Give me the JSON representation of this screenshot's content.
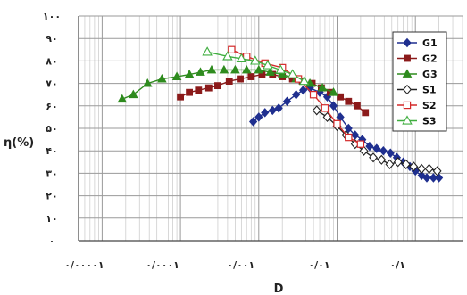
{
  "chart_data": {
    "type": "scatter",
    "xlabel": "D",
    "ylabel": "η(%)",
    "xscale": "log",
    "xlim": [
      5e-06,
      0.4
    ],
    "ylim": [
      0,
      100
    ],
    "grid": true,
    "legend_position": "top-right",
    "x_tick_labels": [
      "۰/۰۰۰۰۱",
      "۰/۰۰۰۱",
      "۰/۰۰۱",
      "۰/۰۱",
      "۰/۱"
    ],
    "x_tick_values": [
      1e-05,
      0.0001,
      0.001,
      0.01,
      0.1
    ],
    "y_tick_labels": [
      "۰",
      "۱۰",
      "۲۰",
      "۳۰",
      "۴۰",
      "۵۰",
      "۶۰",
      "۷۰",
      "۸۰",
      "۹۰",
      "۱۰۰"
    ],
    "y_tick_values": [
      0,
      10,
      20,
      30,
      40,
      50,
      60,
      70,
      80,
      90,
      100
    ],
    "series": [
      {
        "name": "G1",
        "color": "#1f2f8f",
        "marker": "diamond-filled",
        "x": [
          0.00085,
          0.001,
          0.0012,
          0.0015,
          0.0018,
          0.0023,
          0.003,
          0.0037,
          0.0045,
          0.006,
          0.0075,
          0.009,
          0.011,
          0.014,
          0.017,
          0.021,
          0.026,
          0.032,
          0.039,
          0.048,
          0.058,
          0.07,
          0.085,
          0.1,
          0.12,
          0.14,
          0.17,
          0.2
        ],
        "y": [
          53,
          55,
          57,
          58,
          59,
          62,
          65,
          67,
          68,
          66,
          64,
          60,
          55,
          50,
          47,
          45,
          42,
          41,
          40,
          39,
          37,
          35,
          33,
          31,
          29,
          28,
          28,
          28
        ]
      },
      {
        "name": "G2",
        "color": "#8b1a1a",
        "marker": "square-filled",
        "x": [
          0.0001,
          0.00013,
          0.00017,
          0.00023,
          0.0003,
          0.00042,
          0.00058,
          0.0008,
          0.0011,
          0.0015,
          0.002,
          0.0027,
          0.0036,
          0.0048,
          0.0063,
          0.0082,
          0.011,
          0.014,
          0.018,
          0.023
        ],
        "y": [
          64,
          66,
          67,
          68,
          69,
          71,
          72,
          73,
          74,
          74,
          73,
          72,
          71,
          70,
          68,
          66,
          64,
          62,
          60,
          57
        ]
      },
      {
        "name": "G3",
        "color": "#2e8b1e",
        "marker": "triangle-filled",
        "x": [
          1.8e-05,
          2.5e-05,
          3.8e-05,
          5.8e-05,
          9e-05,
          0.00013,
          0.00018,
          0.00025,
          0.00036,
          0.0005,
          0.0007,
          0.001,
          0.0014,
          0.002,
          0.003,
          0.0045,
          0.0065,
          0.009
        ],
        "y": [
          63,
          65,
          70,
          72,
          73,
          74,
          75,
          76,
          76,
          76,
          76,
          76,
          75,
          74,
          72,
          70,
          68,
          66
        ]
      },
      {
        "name": "S1",
        "color": "#222222",
        "marker": "diamond-open",
        "x": [
          0.0055,
          0.0075,
          0.01,
          0.013,
          0.017,
          0.022,
          0.029,
          0.037,
          0.047,
          0.06,
          0.076,
          0.095,
          0.12,
          0.15,
          0.19
        ],
        "y": [
          58,
          55,
          51,
          47,
          43,
          40,
          37,
          36,
          34,
          35,
          34,
          33,
          32,
          32,
          31
        ]
      },
      {
        "name": "S2",
        "color": "#d42a2a",
        "marker": "square-open",
        "x": [
          0.00045,
          0.0007,
          0.0012,
          0.002,
          0.0032,
          0.005,
          0.007,
          0.01,
          0.014,
          0.02
        ],
        "y": [
          85,
          82,
          79,
          77,
          72,
          65,
          59,
          52,
          46,
          43
        ]
      },
      {
        "name": "S3",
        "color": "#3fae3f",
        "marker": "triangle-open",
        "x": [
          0.00022,
          0.0004,
          0.0006,
          0.0009,
          0.0013,
          0.0019,
          0.0027,
          0.0038
        ],
        "y": [
          84,
          82,
          81,
          80,
          78,
          76,
          74,
          71
        ]
      }
    ]
  }
}
